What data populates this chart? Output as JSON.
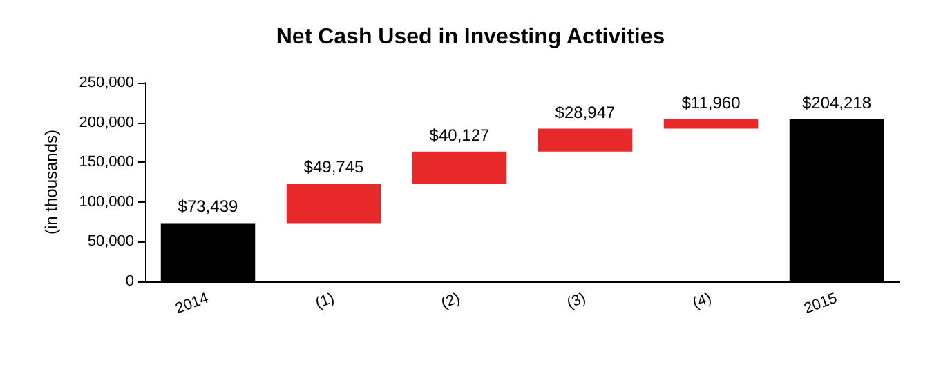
{
  "chart_data": {
    "type": "bar",
    "title": "Net Cash Used in Investing Activities",
    "ylabel": "(in thousands)",
    "categories": [
      "2014",
      "(1)",
      "(2)",
      "(3)",
      "(4)",
      "2015"
    ],
    "values": [
      73439,
      49745,
      40127,
      28947,
      11960,
      204218
    ],
    "base": [
      0,
      73439,
      123184,
      163311,
      192258,
      0
    ],
    "colors": [
      "#000000",
      "#e8292a",
      "#e8292a",
      "#e8292a",
      "#e8292a",
      "#000000"
    ],
    "value_labels": [
      "$73,439",
      "$49,745",
      "$40,127",
      "$28,947",
      "$11,960",
      "$204,218"
    ],
    "ylim": [
      0,
      250000
    ],
    "yticks": [
      {
        "value": 0,
        "label": "0"
      },
      {
        "value": 50000,
        "label": "50,000"
      },
      {
        "value": 100000,
        "label": "100,000"
      },
      {
        "value": 150000,
        "label": "150,000"
      },
      {
        "value": 200000,
        "label": "200,000"
      },
      {
        "value": 250000,
        "label": "250,000"
      }
    ],
    "grid": false
  }
}
